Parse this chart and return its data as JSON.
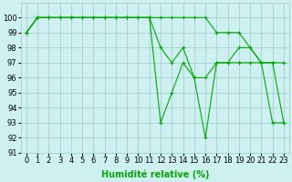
{
  "lines": [
    {
      "x": [
        0,
        1,
        2,
        3,
        4,
        5,
        6,
        7,
        8,
        9,
        10,
        11,
        12,
        13,
        14,
        15,
        16,
        17,
        18,
        19,
        20,
        21,
        22,
        23
      ],
      "y": [
        99,
        100,
        100,
        100,
        100,
        100,
        100,
        100,
        100,
        100,
        100,
        100,
        100,
        100,
        100,
        100,
        100,
        99,
        99,
        99,
        98,
        97,
        97,
        97
      ],
      "color": "#00bb00",
      "marker": "+"
    },
    {
      "x": [
        0,
        1,
        2,
        3,
        4,
        5,
        6,
        7,
        8,
        9,
        10,
        11,
        12,
        13,
        14,
        15,
        16,
        17,
        18,
        19,
        20,
        21,
        22,
        23
      ],
      "y": [
        99,
        100,
        100,
        100,
        100,
        100,
        100,
        100,
        100,
        100,
        100,
        100,
        98,
        97,
        98,
        96,
        96,
        97,
        97,
        98,
        98,
        97,
        97,
        93
      ],
      "color": "#00bb00",
      "marker": "+"
    },
    {
      "x": [
        0,
        1,
        2,
        3,
        4,
        5,
        6,
        7,
        8,
        9,
        10,
        11,
        12,
        13,
        14,
        15,
        16,
        17,
        18,
        19,
        20,
        21,
        22,
        23
      ],
      "y": [
        99,
        100,
        100,
        100,
        100,
        100,
        100,
        100,
        100,
        100,
        100,
        100,
        93,
        95,
        97,
        96,
        92,
        97,
        97,
        97,
        97,
        97,
        93,
        93
      ],
      "color": "#00bb00",
      "marker": "+"
    }
  ],
  "xlabel": "Humidité relative (%)",
  "xlim": [
    -0.5,
    23.5
  ],
  "ylim": [
    91,
    101
  ],
  "yticks": [
    91,
    92,
    93,
    94,
    95,
    96,
    97,
    98,
    99,
    100
  ],
  "xticks": [
    0,
    1,
    2,
    3,
    4,
    5,
    6,
    7,
    8,
    9,
    10,
    11,
    12,
    13,
    14,
    15,
    16,
    17,
    18,
    19,
    20,
    21,
    22,
    23
  ],
  "bg_color": "#cff0f0",
  "grid_color": "#99cccc",
  "line_color": "#00aa00",
  "xlabel_fontsize": 7,
  "tick_fontsize": 6,
  "marker_size": 2.5,
  "line_width": 0.8
}
